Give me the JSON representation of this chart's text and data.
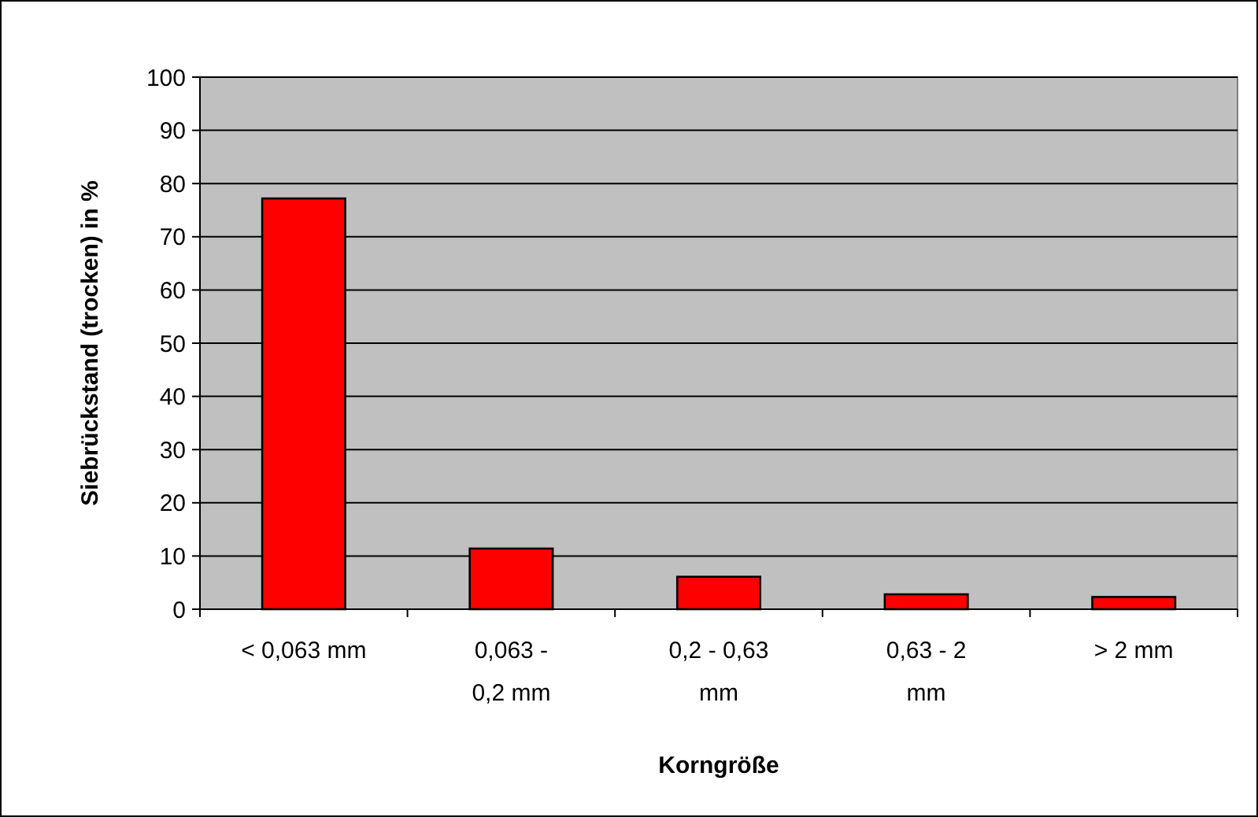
{
  "chart_data": {
    "type": "bar",
    "xlabel": "Korngröße",
    "ylabel": "Siebrückstand (trocken) in %",
    "categories": [
      "< 0,063 mm",
      "0,063 - 0,2 mm",
      "0,2 - 0,63 mm",
      "0,63 - 2 mm",
      "> 2 mm"
    ],
    "values": [
      77.2,
      11.4,
      6.1,
      2.8,
      2.3
    ],
    "color": "#ff0000",
    "ylim": [
      0,
      100
    ],
    "yticks": [
      0,
      10,
      20,
      30,
      40,
      50,
      60,
      70,
      80,
      90,
      100
    ],
    "grid": "y"
  }
}
